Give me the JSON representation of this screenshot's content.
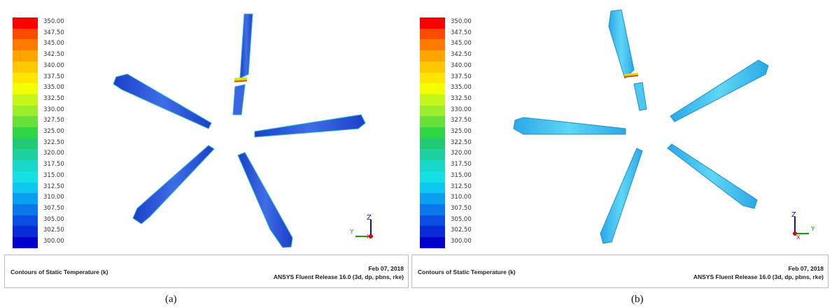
{
  "colorbar": {
    "labels": [
      "350.00",
      "347.50",
      "345.00",
      "342.50",
      "340.00",
      "337.50",
      "335.00",
      "332.50",
      "330.00",
      "327.50",
      "325.00",
      "322.50",
      "320.00",
      "317.50",
      "315.00",
      "312.50",
      "310.00",
      "307.50",
      "305.00",
      "302.50",
      "300.00"
    ],
    "colors": [
      "#ff0000",
      "#ff4a00",
      "#ff7a00",
      "#ffa400",
      "#ffc800",
      "#ffe600",
      "#f2ff00",
      "#c6f51a",
      "#9ced2b",
      "#68e03a",
      "#2ed646",
      "#22c874",
      "#1ecfa0",
      "#19d8c7",
      "#14e0e6",
      "#0fc8f2",
      "#0aa0f0",
      "#0a78ea",
      "#0a4fe2",
      "#0a2cd8",
      "#0000cc"
    ],
    "accent_blade_a": "#2a55d8",
    "accent_blade_b": "#3cc4ee"
  },
  "panels": [
    {
      "id": "a",
      "footer_title": "Contours of Static Temperature (k)",
      "footer_date": "Feb 07, 2018",
      "footer_release": "ANSYS Fluent Release 16.0 (3d, dp, pbns, rke)",
      "caption": "(a)",
      "axis_labels": {
        "z": "Z",
        "y": "Y",
        "x": "X"
      }
    },
    {
      "id": "b",
      "footer_title": "Contours of Static Temperature (k)",
      "footer_date": "Feb 07, 2018",
      "footer_release": "ANSYS Fluent Release 16.0 (3d, dp, pbns, rke)",
      "caption": "(b)",
      "axis_labels": {
        "z": "Z",
        "y": "Y",
        "x": "X"
      }
    }
  ]
}
